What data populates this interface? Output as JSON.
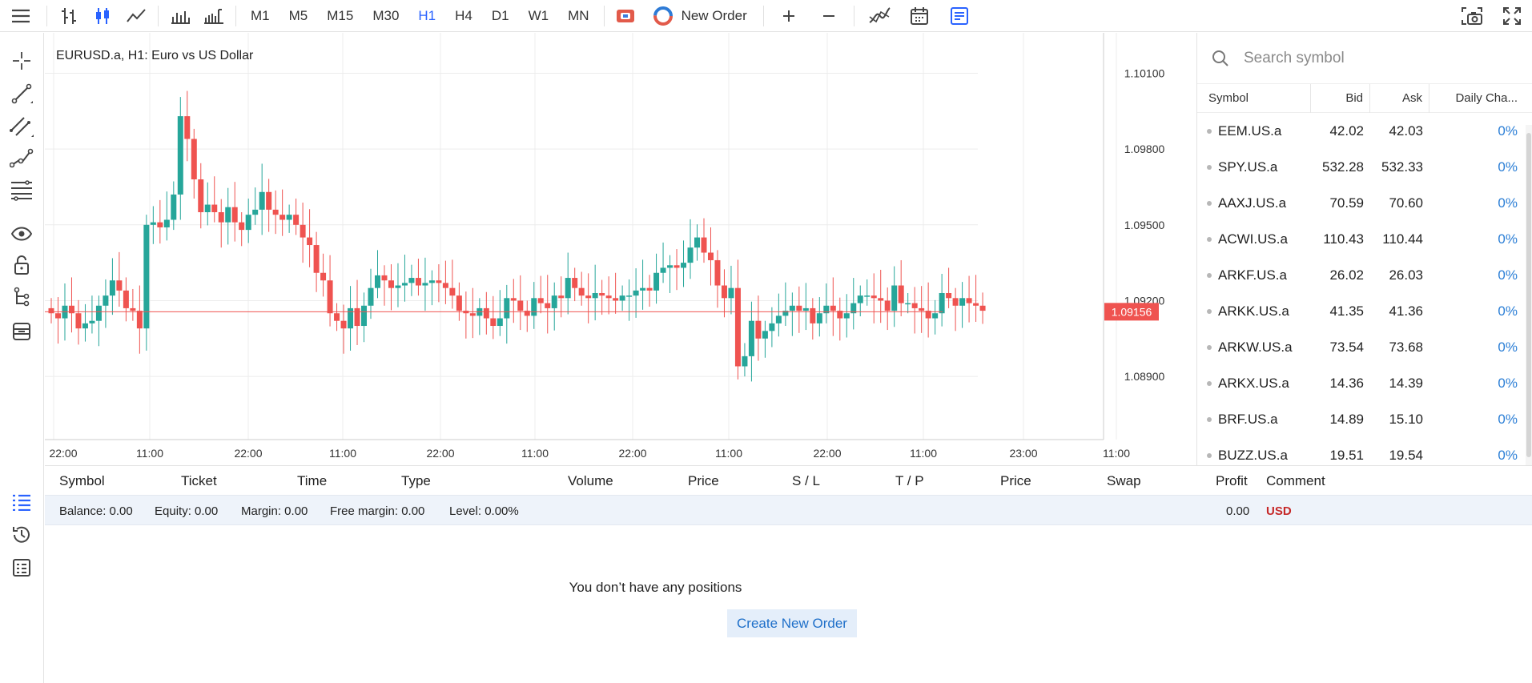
{
  "toolbar": {
    "timeframes": [
      "M1",
      "M5",
      "M15",
      "M30",
      "H1",
      "H4",
      "D1",
      "W1",
      "MN"
    ],
    "active_timeframe": "H1",
    "new_order_label": "New Order",
    "accent": "#2962ff"
  },
  "chart": {
    "title": "EURUSD.a, H1: Euro vs US Dollar",
    "current_price": "1.09156",
    "current_price_color": "#ef5350",
    "up_color": "#26a69a",
    "down_color": "#ef5350"
  },
  "chart_data": {
    "type": "candlestick",
    "symbol": "EURUSD.a",
    "timeframe": "H1",
    "title": "EURUSD.a, H1: Euro vs US Dollar",
    "y_ticks": [
      "1.10100",
      "1.09800",
      "1.09500",
      "1.09200",
      "1.08900"
    ],
    "x_ticks": [
      "22:00",
      "11:00",
      "22:00",
      "11:00",
      "22:00",
      "11:00",
      "22:00",
      "11:00",
      "22:00",
      "11:00",
      "23:00",
      "11:00"
    ],
    "ylim": [
      1.0865,
      1.1026
    ],
    "last_price": 1.09156,
    "closes": [
      1.0915,
      1.0913,
      1.0918,
      1.0915,
      1.0909,
      1.0911,
      1.0912,
      1.0918,
      1.0922,
      1.0928,
      1.0924,
      1.0917,
      1.0916,
      1.0909,
      1.095,
      1.0951,
      1.0949,
      1.0952,
      1.0962,
      1.0993,
      1.0984,
      1.0968,
      1.0955,
      1.0958,
      1.0955,
      1.0951,
      1.0957,
      1.0951,
      1.0948,
      1.0954,
      1.0956,
      1.0963,
      1.0956,
      1.0954,
      1.0952,
      1.0954,
      1.095,
      1.0945,
      1.0942,
      1.0931,
      1.0928,
      1.0915,
      1.0912,
      1.0909,
      1.0917,
      1.091,
      1.0918,
      1.0925,
      1.093,
      1.0928,
      1.0925,
      1.0926,
      1.0927,
      1.0929,
      1.0926,
      1.0927,
      1.0928,
      1.0927,
      1.0925,
      1.0922,
      1.0916,
      1.0915,
      1.0914,
      1.0917,
      1.0913,
      1.091,
      1.0913,
      1.0921,
      1.092,
      1.0916,
      1.0914,
      1.0921,
      1.0919,
      1.0917,
      1.0922,
      1.0921,
      1.0929,
      1.0925,
      1.0922,
      1.0921,
      1.0923,
      1.0922,
      1.0921,
      1.092,
      1.0922,
      1.0922,
      1.0924,
      1.0925,
      1.0924,
      1.0931,
      1.0933,
      1.0934,
      1.0933,
      1.0935,
      1.0941,
      1.0945,
      1.0939,
      1.0936,
      1.0926,
      1.0921,
      1.0925,
      1.0894,
      1.0898,
      1.0912,
      1.0905,
      1.0908,
      1.0911,
      1.0914,
      1.0916,
      1.0918,
      1.0916,
      1.0917,
      1.0911,
      1.0915,
      1.0918,
      1.0916,
      1.0913,
      1.0915,
      1.0919,
      1.0922,
      1.0922,
      1.0921,
      1.092,
      1.0916,
      1.0926,
      1.0919,
      1.0919,
      1.0917,
      1.0916,
      1.0913,
      1.0915,
      1.0923,
      1.0921,
      1.0918,
      1.0921,
      1.0919,
      1.0918,
      1.0916
    ]
  },
  "watchlist": {
    "search_placeholder": "Search symbol",
    "columns": [
      "Symbol",
      "Bid",
      "Ask",
      "Daily Cha..."
    ],
    "rows": [
      {
        "symbol": "EEM.US.a",
        "bid": "42.02",
        "ask": "42.03",
        "change": "0%"
      },
      {
        "symbol": "SPY.US.a",
        "bid": "532.28",
        "ask": "532.33",
        "change": "0%"
      },
      {
        "symbol": "AAXJ.US.a",
        "bid": "70.59",
        "ask": "70.60",
        "change": "0%"
      },
      {
        "symbol": "ACWI.US.a",
        "bid": "110.43",
        "ask": "110.44",
        "change": "0%"
      },
      {
        "symbol": "ARKF.US.a",
        "bid": "26.02",
        "ask": "26.03",
        "change": "0%"
      },
      {
        "symbol": "ARKK.US.a",
        "bid": "41.35",
        "ask": "41.36",
        "change": "0%"
      },
      {
        "symbol": "ARKW.US.a",
        "bid": "73.54",
        "ask": "73.68",
        "change": "0%"
      },
      {
        "symbol": "ARKX.US.a",
        "bid": "14.36",
        "ask": "14.39",
        "change": "0%"
      },
      {
        "symbol": "BRF.US.a",
        "bid": "14.89",
        "ask": "15.10",
        "change": "0%"
      },
      {
        "symbol": "BUZZ.US.a",
        "bid": "19.51",
        "ask": "19.54",
        "change": "0%"
      }
    ]
  },
  "positions": {
    "columns": [
      "Symbol",
      "Ticket",
      "Time",
      "Type",
      "Volume",
      "Price",
      "S / L",
      "T / P",
      "Price",
      "Swap",
      "Profit",
      "Comment"
    ],
    "balance": "Balance: 0.00",
    "equity": "Equity: 0.00",
    "margin": "Margin: 0.00",
    "free_margin": "Free margin: 0.00",
    "level": "Level: 0.00%",
    "profit": "0.00",
    "currency": "USD",
    "empty_message": "You don’t have any positions",
    "create_button": "Create New Order"
  },
  "icons": {
    "top": [
      "menu-icon",
      "bar-chart-icon",
      "candlestick-icon",
      "line-chart-icon",
      "volume-bars-icon",
      "volume-ticks-icon",
      "one-click-trading-icon",
      "new-order-icon",
      "zoom-in-icon",
      "zoom-out-icon",
      "indicators-icon",
      "calendar-icon",
      "depth-icon",
      "screenshot-icon",
      "fullscreen-icon"
    ],
    "left": [
      "crosshair-icon",
      "trend-line-icon",
      "channel-icon",
      "polyline-icon",
      "fibonacci-icon",
      "eye-icon",
      "lock-icon",
      "object-tree-icon",
      "layers-icon",
      "positions-list-icon",
      "history-icon",
      "journal-icon"
    ]
  }
}
